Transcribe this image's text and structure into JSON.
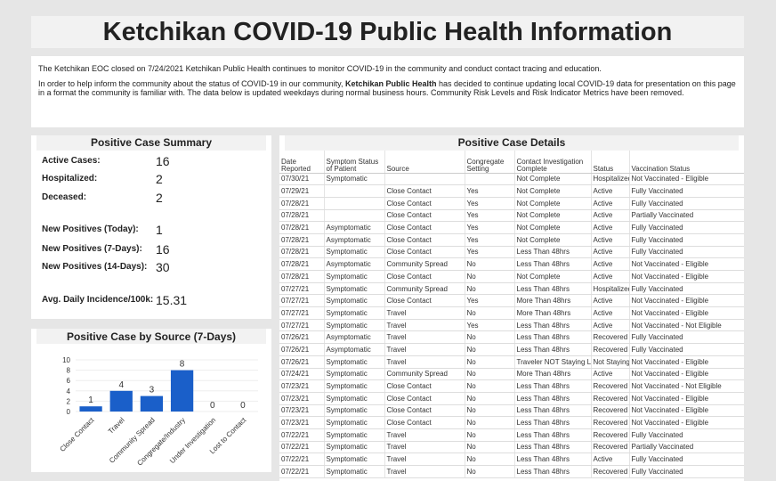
{
  "header": {
    "title": "Ketchikan COVID-19 Public Health Information"
  },
  "notice": {
    "paragraphs": [
      [
        "The Ketchikan EOC closed on 7/24/2021 Ketchikan Public Health continues to monitor COVID-19 in the community and conduct contact tracing and education."
      ],
      [
        "In order to help inform the community about the status of COVID-19 in our community, ",
        "Ketchikan Public Health",
        " has decided to continue updating local COVID-19 data for presentation on this page in a format the community is familiar with. The data below is updated weekdays during normal business hours.  Community Risk Levels and Risk Indicator Metrics have been removed."
      ]
    ]
  },
  "summary": {
    "title": "Positive Case Summary",
    "items": [
      {
        "label": "Active Cases:",
        "value": 16
      },
      {
        "label": "Hospitalized:",
        "value": 2
      },
      {
        "label": "Deceased:",
        "value": 2
      },
      {
        "label": "New Positives (Today):",
        "value": 1
      },
      {
        "label": "New Positives (7-Days):",
        "value": 16
      },
      {
        "label": "New Positives (14-Days):",
        "value": 30
      },
      {
        "label": "Avg. Daily Incidence/100k:",
        "value": 15.31
      }
    ]
  },
  "chart_data": {
    "type": "bar",
    "title": "Positive Case by Source (7-Days)",
    "categories": [
      "Close Contact",
      "Travel",
      "Community Spread",
      "Congregate/Industry",
      "Under Investigation",
      "Lost to Contact"
    ],
    "values": [
      1,
      4,
      3,
      8,
      0,
      0
    ],
    "color": "#1a5fc9",
    "ylim": [
      0,
      10
    ],
    "yticks": [
      0,
      2,
      4,
      6,
      8,
      10
    ],
    "grid": true
  },
  "table": {
    "title": "Positive Case Details",
    "columns": [
      "Date Reported",
      "Symptom Status of Patient",
      "Source",
      "Congregate Setting",
      "Contact Investigation Complete",
      "Status",
      "Vaccination Status"
    ],
    "rows": [
      [
        "07/30/21",
        "Symptomatic",
        null,
        null,
        "Not Complete",
        "Hospitalized",
        "Not Vaccinated - Eligible"
      ],
      [
        "07/29/21",
        null,
        "Close Contact",
        "Yes",
        "Not Complete",
        "Active",
        "Fully Vaccinated"
      ],
      [
        "07/28/21",
        null,
        "Close Contact",
        "Yes",
        "Not Complete",
        "Active",
        "Fully Vaccinated"
      ],
      [
        "07/28/21",
        null,
        "Close Contact",
        "Yes",
        "Not Complete",
        "Active",
        "Partially Vaccinated"
      ],
      [
        "07/28/21",
        "Asymptomatic",
        "Close Contact",
        "Yes",
        "Not Complete",
        "Active",
        "Fully Vaccinated"
      ],
      [
        "07/28/21",
        "Asymptomatic",
        "Close Contact",
        "Yes",
        "Not Complete",
        "Active",
        "Fully Vaccinated"
      ],
      [
        "07/28/21",
        "Symptomatic",
        "Close Contact",
        "Yes",
        "Less Than 48hrs",
        "Active",
        "Fully Vaccinated"
      ],
      [
        "07/28/21",
        "Asymptomatic",
        "Community Spread",
        "No",
        "Less Than 48hrs",
        "Active",
        "Not Vaccinated - Eligible"
      ],
      [
        "07/28/21",
        "Symptomatic",
        "Close Contact",
        "No",
        "Not Complete",
        "Active",
        "Not Vaccinated - Eligible"
      ],
      [
        "07/27/21",
        "Symptomatic",
        "Community Spread",
        "No",
        "Less Than 48hrs",
        "Hospitalized",
        "Fully Vaccinated"
      ],
      [
        "07/27/21",
        "Symptomatic",
        "Close Contact",
        "Yes",
        "More Than 48hrs",
        "Active",
        "Not Vaccinated - Eligible"
      ],
      [
        "07/27/21",
        "Symptomatic",
        "Travel",
        "No",
        "More Than 48hrs",
        "Active",
        "Not Vaccinated - Eligible"
      ],
      [
        "07/27/21",
        "Symptomatic",
        "Travel",
        "Yes",
        "Less Than 48hrs",
        "Active",
        "Not Vaccinated - Not Eligible"
      ],
      [
        "07/26/21",
        "Asymptomatic",
        "Travel",
        "No",
        "Less Than 48hrs",
        "Recovered",
        "Fully Vaccinated"
      ],
      [
        "07/26/21",
        "Asymptomatic",
        "Travel",
        "No",
        "Less Than 48hrs",
        "Recovered",
        "Fully Vaccinated"
      ],
      [
        "07/26/21",
        "Symptomatic",
        "Travel",
        "No",
        "Traveler NOT Staying Local",
        "Not Staying Local",
        "Not Vaccinated - Eligible"
      ],
      [
        "07/24/21",
        "Symptomatic",
        "Community Spread",
        "No",
        "More Than 48hrs",
        "Active",
        "Not Vaccinated - Eligible"
      ],
      [
        "07/23/21",
        "Symptomatic",
        "Close Contact",
        "No",
        "Less Than 48hrs",
        "Recovered",
        "Not Vaccinated - Not Eligible"
      ],
      [
        "07/23/21",
        "Symptomatic",
        "Close Contact",
        "No",
        "Less Than 48hrs",
        "Recovered",
        "Not Vaccinated - Eligible"
      ],
      [
        "07/23/21",
        "Symptomatic",
        "Close Contact",
        "No",
        "Less Than 48hrs",
        "Recovered",
        "Not Vaccinated - Eligible"
      ],
      [
        "07/23/21",
        "Symptomatic",
        "Close Contact",
        "No",
        "Less Than 48hrs",
        "Recovered",
        "Not Vaccinated - Eligible"
      ],
      [
        "07/22/21",
        "Symptomatic",
        "Travel",
        "No",
        "Less Than 48hrs",
        "Recovered",
        "Fully Vaccinated"
      ],
      [
        "07/22/21",
        "Symptomatic",
        "Travel",
        "No",
        "Less Than 48hrs",
        "Recovered",
        "Partially Vaccinated"
      ],
      [
        "07/22/21",
        "Symptomatic",
        "Travel",
        "No",
        "Less Than 48hrs",
        "Active",
        "Fully Vaccinated"
      ],
      [
        "07/22/21",
        "Symptomatic",
        "Travel",
        "No",
        "Less Than 48hrs",
        "Recovered",
        "Fully Vaccinated"
      ]
    ]
  }
}
